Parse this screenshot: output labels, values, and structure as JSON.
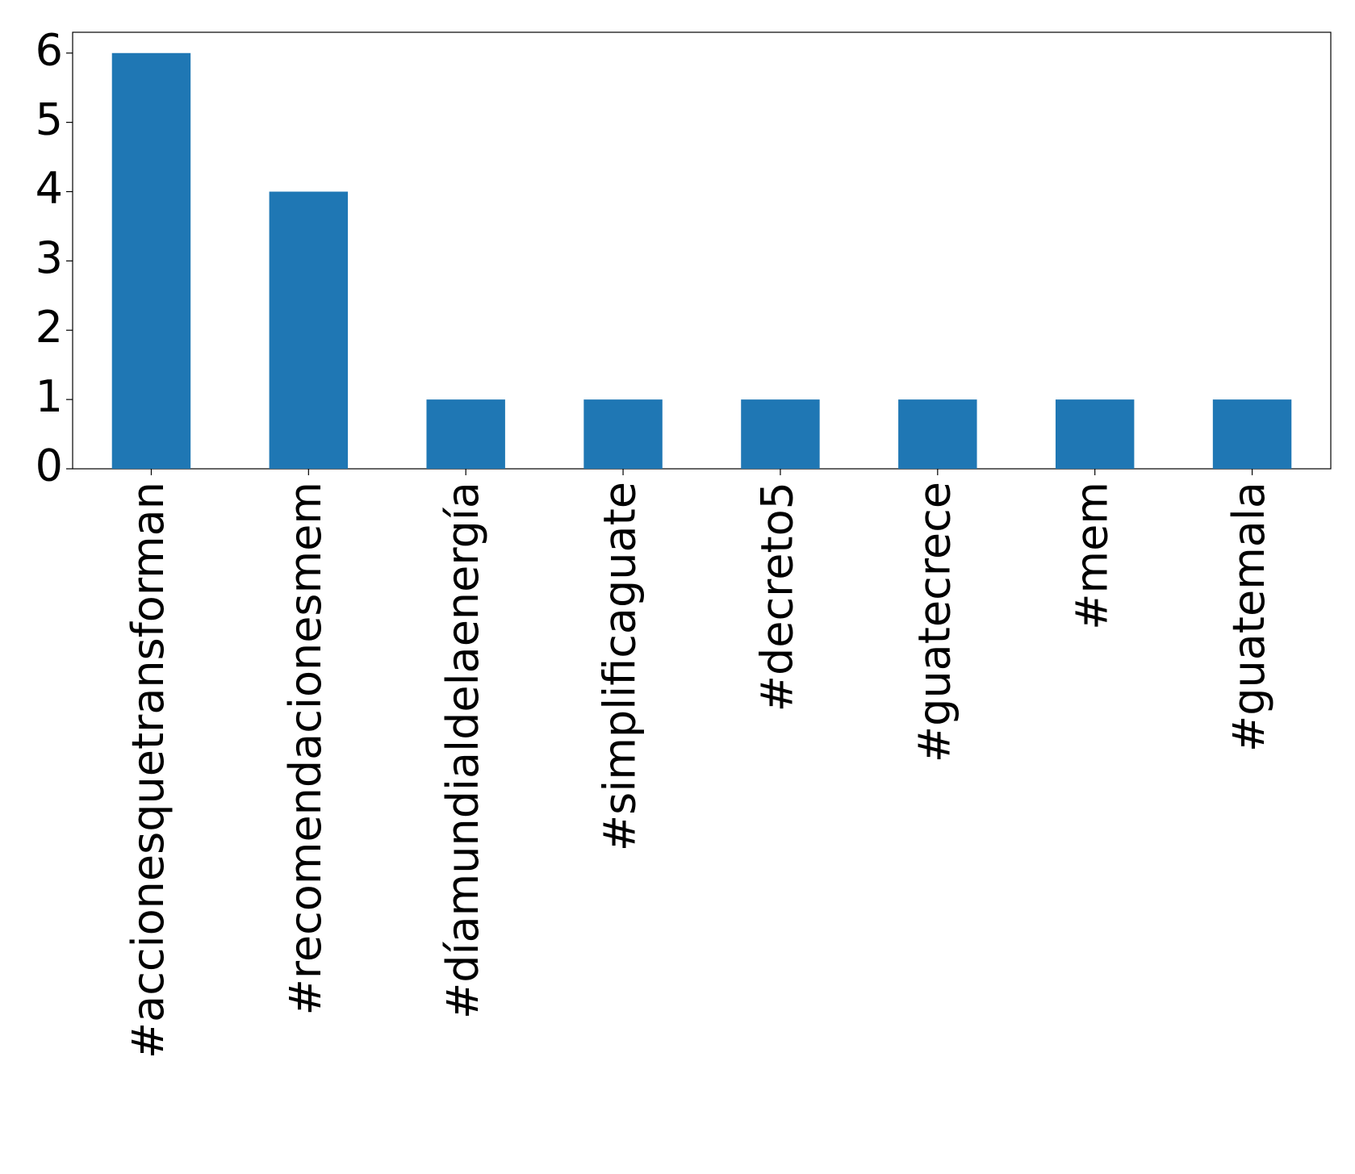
{
  "chart_data": {
    "type": "bar",
    "categories": [
      "#accionesquetransforman",
      "#recomendacionesmem",
      "#díamundialdelaenergía",
      "#simplificaguate",
      "#decreto5",
      "#guatecrece",
      "#mem",
      "#guatemala"
    ],
    "values": [
      6,
      4,
      1,
      1,
      1,
      1,
      1,
      1
    ],
    "color": "#1f77b4",
    "ylim": [
      0,
      6.3
    ],
    "yticks": [
      0,
      1,
      2,
      3,
      4,
      5,
      6
    ],
    "grid": false
  }
}
